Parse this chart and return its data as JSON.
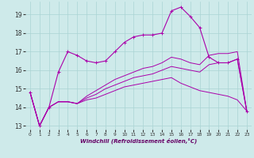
{
  "xlabel": "Windchill (Refroidissement éolien,°C)",
  "ylabel": "",
  "bg_color": "#ceeaea",
  "grid_color": "#aad4d4",
  "line_color": "#aa00aa",
  "xlim": [
    -0.5,
    23.5
  ],
  "ylim": [
    12.8,
    19.7
  ],
  "yticks": [
    13,
    14,
    15,
    16,
    17,
    18,
    19
  ],
  "xticks": [
    0,
    1,
    2,
    3,
    4,
    5,
    6,
    7,
    8,
    9,
    10,
    11,
    12,
    13,
    14,
    15,
    16,
    17,
    18,
    19,
    20,
    21,
    22,
    23
  ],
  "series": [
    [
      14.8,
      13.0,
      14.0,
      15.9,
      17.0,
      16.8,
      16.5,
      16.4,
      16.5,
      17.0,
      17.5,
      17.8,
      17.9,
      17.9,
      18.0,
      19.2,
      19.4,
      18.9,
      18.3,
      16.7,
      16.4,
      16.4,
      16.6,
      13.8
    ],
    [
      14.8,
      13.0,
      14.0,
      14.3,
      14.3,
      14.2,
      14.4,
      14.5,
      14.7,
      14.9,
      15.1,
      15.2,
      15.3,
      15.4,
      15.5,
      15.6,
      15.3,
      15.1,
      14.9,
      14.8,
      14.7,
      14.6,
      14.4,
      13.8
    ],
    [
      14.8,
      13.0,
      14.0,
      14.3,
      14.3,
      14.2,
      14.5,
      14.7,
      15.0,
      15.2,
      15.4,
      15.6,
      15.7,
      15.8,
      16.0,
      16.2,
      16.1,
      16.0,
      15.9,
      16.3,
      16.4,
      16.4,
      16.6,
      13.8
    ],
    [
      14.8,
      13.0,
      14.0,
      14.3,
      14.3,
      14.2,
      14.6,
      14.9,
      15.2,
      15.5,
      15.7,
      15.9,
      16.1,
      16.2,
      16.4,
      16.7,
      16.6,
      16.4,
      16.3,
      16.8,
      16.9,
      16.9,
      17.0,
      13.8
    ]
  ]
}
